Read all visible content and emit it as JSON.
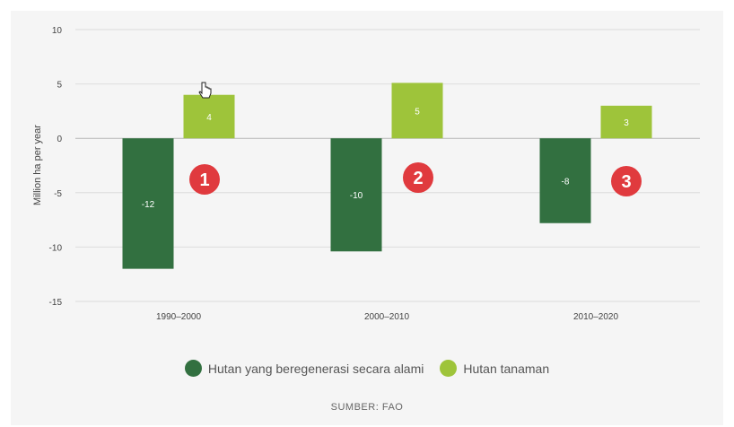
{
  "chart_data": {
    "type": "bar",
    "categories": [
      "1990–2000",
      "2000–2010",
      "2010–2020"
    ],
    "series": [
      {
        "name": "Hutan yang beregenerasi secara alami",
        "values": [
          -12,
          -10.4,
          -7.8
        ],
        "labels": [
          "-12",
          "-10",
          "-8"
        ],
        "color": "#327040"
      },
      {
        "name": "Hutan tanaman",
        "values": [
          4,
          5.1,
          3
        ],
        "labels": [
          "4",
          "5",
          "3"
        ],
        "color": "#9ec43a"
      }
    ],
    "ylabel": "Million ha per year",
    "ylim": [
      -15,
      10
    ],
    "yticks": [
      10,
      5,
      0,
      -5,
      -10,
      -15
    ],
    "annotations": [
      "1",
      "2",
      "3"
    ],
    "annotation_color": "#e03a3e",
    "source": "SUMBER: FAO"
  }
}
